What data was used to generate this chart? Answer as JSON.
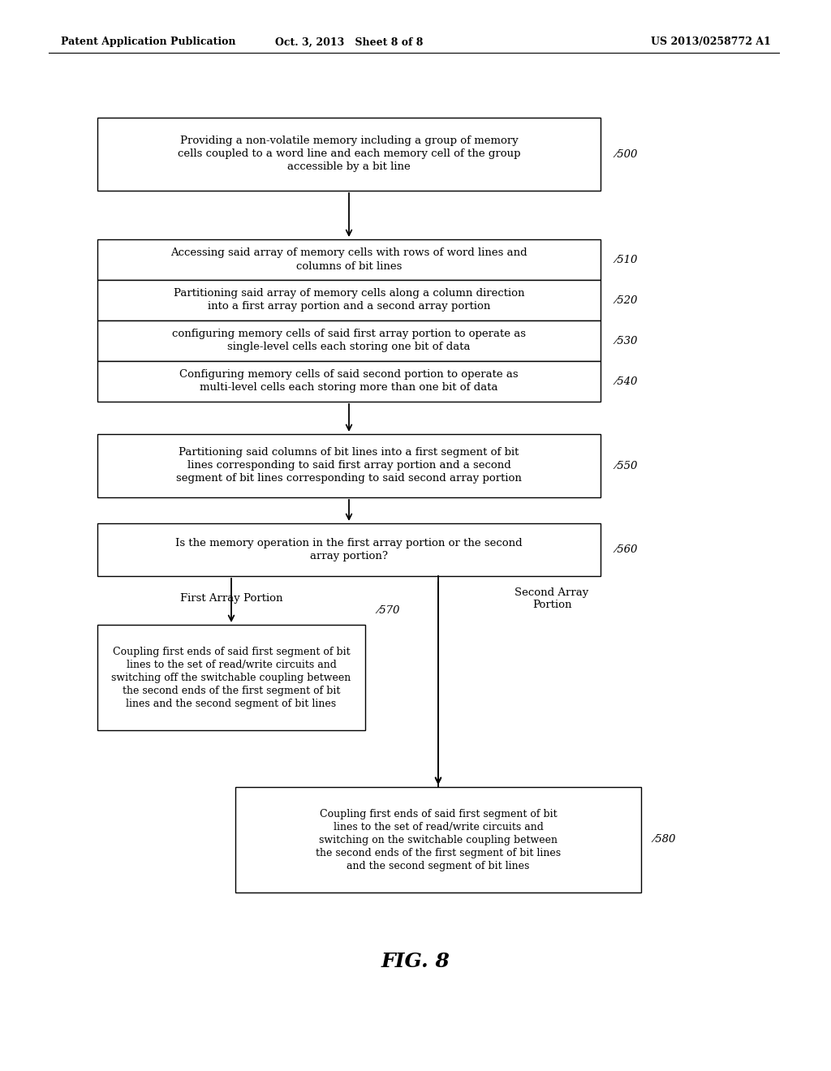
{
  "header_left": "Patent Application Publication",
  "header_mid": "Oct. 3, 2013   Sheet 8 of 8",
  "header_right": "US 2013/0258772 A1",
  "figure_label": "FIG. 8",
  "background_color": "#ffffff",
  "box_500_text": "Providing a non-volatile memory including a group of memory\ncells coupled to a word line and each memory cell of the group\naccessible by a bit line",
  "box_510_text": "Accessing said array of memory cells with rows of word lines and\ncolumns of bit lines",
  "box_520_text": "Partitioning said array of memory cells along a column direction\ninto a first array portion and a second array portion",
  "box_530_text": "configuring memory cells of said first array portion to operate as\nsingle-level cells each storing one bit of data",
  "box_540_text": "Configuring memory cells of said second portion to operate as\nmulti-level cells each storing more than one bit of data",
  "box_550_text": "Partitioning said columns of bit lines into a first segment of bit\nlines corresponding to said first array portion and a second\nsegment of bit lines corresponding to said second array portion",
  "box_560_text": "Is the memory operation in the first array portion or the second\narray portion?",
  "box_570_text": "Coupling first ends of said first segment of bit\nlines to the set of read/write circuits and\nswitching off the switchable coupling between\nthe second ends of the first segment of bit\nlines and the second segment of bit lines",
  "box_580_text": "Coupling first ends of said first segment of bit\nlines to the set of read/write circuits and\nswitching on the switchable coupling between\nthe second ends of the first segment of bit lines\nand the second segment of bit lines",
  "label_500": "500",
  "label_510": "510",
  "label_520": "520",
  "label_530": "530",
  "label_540": "540",
  "label_550": "550",
  "label_560": "560",
  "label_570": "570",
  "label_580": "580",
  "annotation_left": "First Array Portion",
  "annotation_right": "Second Array\nPortion"
}
